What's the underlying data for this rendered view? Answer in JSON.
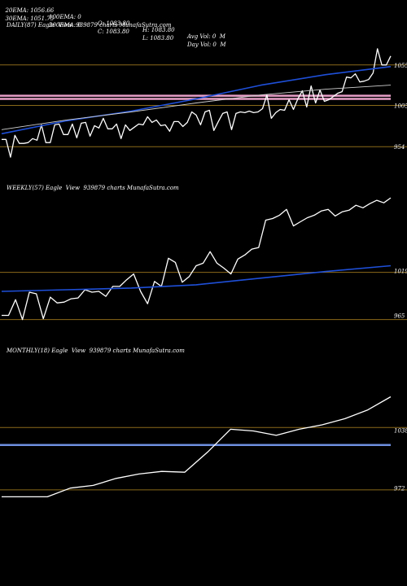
{
  "header": {
    "line1": [
      "20EMA: 1056.66",
      "100EMA: 0",
      "O: 1083.80",
      "H: 1083.80",
      "Avg Vol: 0  M"
    ],
    "line2": [
      "30EMA: 1051.75",
      "200EMA: 0",
      "C: 1083.80",
      "L: 1083.80",
      "Day Vol: 0  M"
    ]
  },
  "colors": {
    "background": "#000000",
    "price": "#ffffff",
    "ema": "#1e4fd8",
    "reference_line": "#8b6a1a",
    "daily_pink": "#e8a0c8",
    "monthly_blue": "#6f8fe0"
  },
  "chart_data": [
    {
      "type": "line",
      "title": "DAILY(87) Eagle  View  939879 charts MunafaSutra.com",
      "ylim": [
        916,
        1095
      ],
      "yticks": [
        1055,
        1005,
        954
      ],
      "ytick_labels": [
        "1055",
        "1005",
        "954"
      ],
      "reference_levels": [
        1055,
        1005,
        954
      ],
      "highlight_levels": [
        1017,
        1013
      ],
      "series": [
        {
          "role": "price",
          "values": [
            963,
            963,
            941,
            968,
            958,
            958,
            959,
            964,
            962,
            981,
            959,
            959,
            981,
            982,
            969,
            969,
            982,
            965,
            983,
            984,
            967,
            980,
            977,
            989,
            976,
            976,
            982,
            964,
            981,
            974,
            978,
            982,
            981,
            991,
            984,
            987,
            980,
            981,
            973,
            985,
            985,
            979,
            984,
            997,
            993,
            981,
            997,
            999,
            974,
            985,
            995,
            997,
            975,
            995,
            997,
            996,
            998,
            996,
            997,
            1001,
            1018,
            989,
            996,
            1000,
            999,
            1012,
            1000,
            1013,
            1023,
            1003,
            1029,
            1008,
            1024,
            1010,
            1012,
            1016,
            1020,
            1022,
            1040,
            1039,
            1044,
            1034,
            1035,
            1037,
            1045,
            1075,
            1055,
            1055,
            1066
          ]
        },
        {
          "role": "ema20",
          "values": [
            970,
            986,
            998,
            1013,
            1030,
            1043,
            1053
          ]
        },
        {
          "role": "ema30",
          "values": [
            975,
            987,
            997,
            1008,
            1018,
            1025,
            1030
          ]
        }
      ]
    },
    {
      "type": "line",
      "title": "WEEKLY(57) Eagle  View  939879 charts MunafaSutra.com",
      "ylim": [
        935,
        1110
      ],
      "yticks": [
        1019,
        965
      ],
      "ytick_labels": [
        "1019",
        "965"
      ],
      "reference_levels": [
        1017,
        960
      ],
      "series": [
        {
          "role": "price",
          "values": [
            965,
            965,
            984,
            960,
            993,
            991,
            961,
            987,
            980,
            981,
            985,
            986,
            996,
            993,
            994,
            988,
            1000,
            1000,
            1008,
            1015,
            994,
            979,
            1006,
            1000,
            1034,
            1029,
            1005,
            1012,
            1025,
            1028,
            1042,
            1028,
            1022,
            1015,
            1033,
            1038,
            1045,
            1047,
            1080,
            1082,
            1086,
            1093,
            1073,
            1078,
            1083,
            1086,
            1091,
            1093,
            1085,
            1090,
            1092,
            1098,
            1095,
            1100,
            1104,
            1101,
            1107
          ]
        },
        {
          "role": "ema",
          "values": [
            994,
            996,
            998,
            1002,
            1010,
            1018,
            1025
          ]
        }
      ]
    },
    {
      "type": "line",
      "title": "MONTHLY(18) Eagle  View  939879 charts MunafaSutra.com",
      "ylim": [
        955,
        1120
      ],
      "yticks": [
        1038,
        972
      ],
      "ytick_labels": [
        "1038",
        "972"
      ],
      "reference_levels": [
        1041,
        970
      ],
      "highlight_levels": [
        1021
      ],
      "series": [
        {
          "role": "price",
          "values": [
            962,
            962,
            962,
            972,
            975,
            983,
            988,
            991,
            990,
            1013,
            1039,
            1037,
            1032,
            1039,
            1044,
            1051,
            1061,
            1076
          ]
        }
      ]
    }
  ]
}
